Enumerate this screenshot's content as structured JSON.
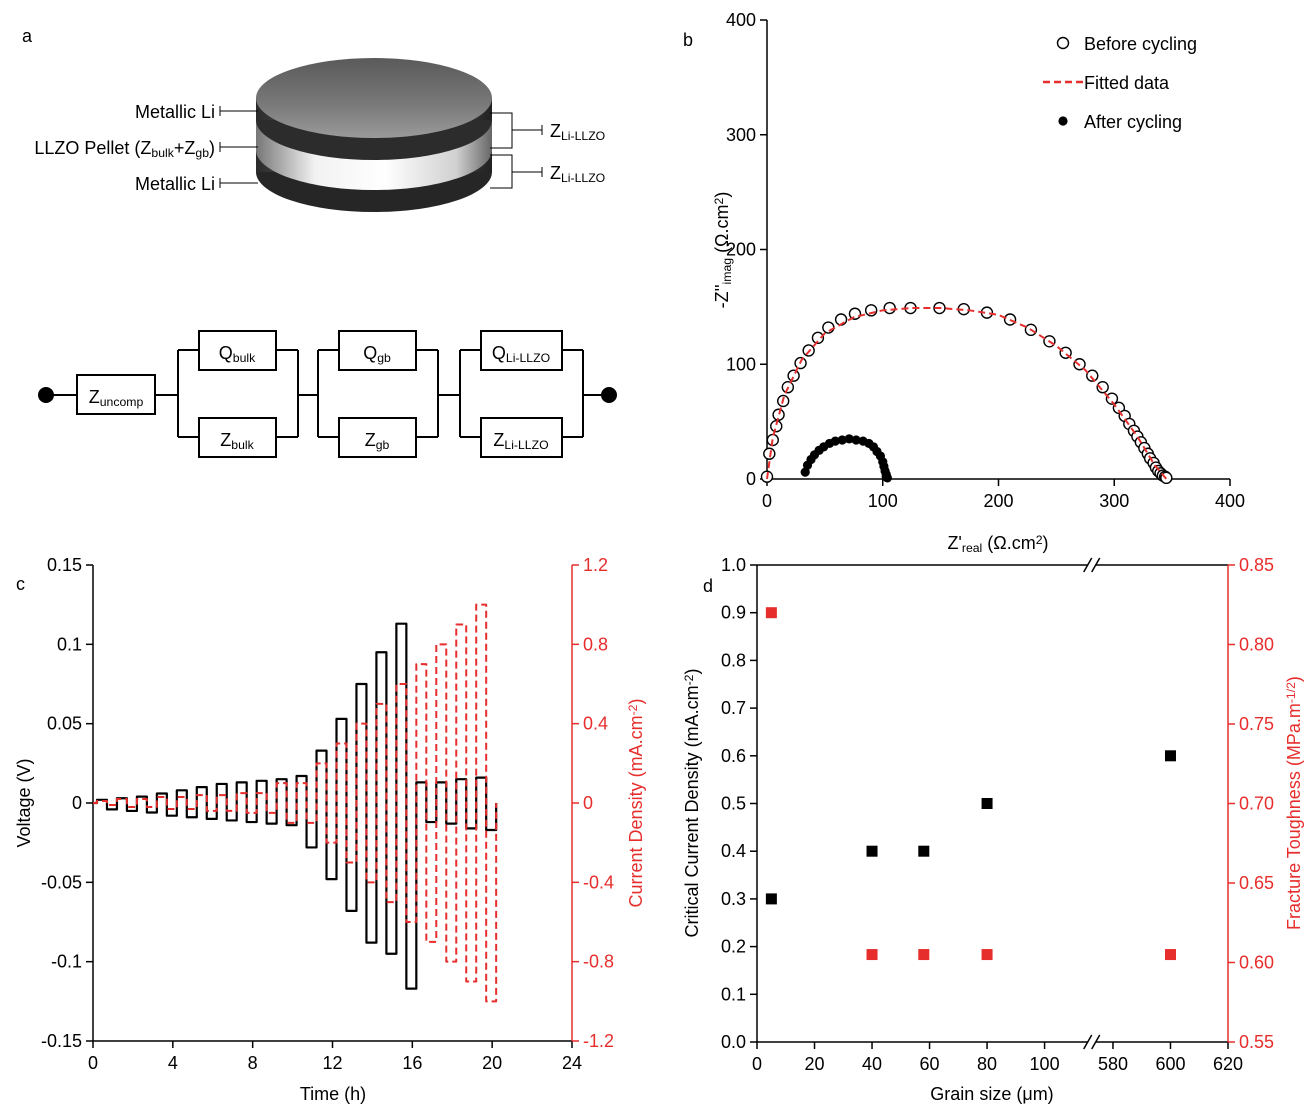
{
  "diagram": {
    "panel": "a",
    "cell_labels": [
      [
        "Metallic Li"
      ],
      [
        "LLZO Pellet (Z",
        {
          "sub": "bulk"
        },
        "+Z",
        {
          "sub": "gb"
        },
        ")"
      ],
      [
        "Metallic Li"
      ]
    ],
    "interface_labels": [
      [
        "Z",
        {
          "sub": "Li-LLZO"
        }
      ],
      [
        "Z",
        {
          "sub": "Li-LLZO"
        }
      ]
    ],
    "circuit": {
      "series_element": [
        "Z",
        {
          "sub": "uncomp"
        }
      ],
      "blocks": [
        {
          "q": [
            "Q",
            {
              "sub": "bulk"
            }
          ],
          "z": [
            "Z",
            {
              "sub": "bulk"
            }
          ]
        },
        {
          "q": [
            "Q",
            {
              "sub": "gb"
            }
          ],
          "z": [
            "Z",
            {
              "sub": "gb"
            }
          ]
        },
        {
          "q": [
            "Q",
            {
              "sub": "Li-LLZO"
            }
          ],
          "z": [
            "Z",
            {
              "sub": "Li-LLZO"
            }
          ]
        }
      ]
    }
  },
  "chart_data": [
    {
      "type": "scatter",
      "panel": "b",
      "xlabel": [
        "Z'",
        {
          "sub": "real"
        },
        " (Ω.cm",
        {
          "sup": "2"
        },
        ")"
      ],
      "ylabel": [
        "-Z''",
        {
          "sub": "imag"
        },
        " (Ω.cm",
        {
          "sup": "2"
        },
        ")"
      ],
      "xlim": [
        0,
        400
      ],
      "ylim": [
        0,
        400
      ],
      "xticks": [
        0,
        100,
        200,
        300,
        400
      ],
      "yticks": [
        0,
        100,
        200,
        300,
        400
      ],
      "legend": "upper right",
      "series": [
        {
          "name": "Before cycling",
          "color": "#000000",
          "marker": "open-circle",
          "x": [
            0,
            2,
            5,
            8,
            10,
            14,
            18,
            23,
            29,
            36,
            44,
            53,
            64,
            76,
            90,
            106,
            124,
            149,
            170,
            190,
            210,
            228,
            244,
            258,
            270,
            281,
            290,
            298,
            304,
            309,
            313,
            317,
            320,
            323,
            326,
            329,
            331,
            334,
            336,
            338,
            340,
            342,
            344,
            345
          ],
          "values": [
            2,
            22,
            34,
            46,
            56,
            68,
            80,
            90,
            101,
            112,
            123,
            132,
            139,
            144,
            147,
            149,
            149,
            149,
            148,
            145,
            139,
            130,
            120,
            110,
            100,
            90,
            80,
            70,
            62,
            55,
            48,
            42,
            37,
            32,
            27,
            22,
            18,
            14,
            10,
            7,
            5,
            3,
            2,
            1
          ]
        },
        {
          "name": "Fitted data",
          "color": "#e62e2d",
          "marker": "dashed-line",
          "x": [
            0,
            5,
            15,
            30,
            50,
            75,
            100,
            125,
            150,
            175,
            200,
            225,
            250,
            275,
            300,
            320,
            335,
            345
          ],
          "values": [
            0,
            36,
            73,
            104,
            127,
            141,
            147,
            149,
            149,
            147,
            143,
            132,
            116,
            95,
            65,
            37,
            12,
            0
          ]
        },
        {
          "name": "After cycling",
          "color": "#000000",
          "marker": "filled-circle",
          "x": [
            33,
            35,
            38,
            41,
            45,
            49,
            54,
            59,
            65,
            71,
            77,
            83,
            88,
            92,
            95,
            98,
            100,
            101,
            102,
            103,
            103,
            104
          ],
          "values": [
            6,
            12,
            17,
            21,
            25,
            28,
            31,
            33,
            34,
            35,
            34,
            33,
            31,
            28,
            24,
            20,
            15,
            11,
            7,
            4,
            2,
            1
          ]
        }
      ]
    },
    {
      "type": "line",
      "panel": "c",
      "xlabel": "Time (h)",
      "ylabel": "Voltage (V)",
      "y2label": [
        "Current Density (mA.cm",
        {
          "sup": "-2"
        },
        ")"
      ],
      "xlim": [
        0,
        24
      ],
      "xticks": [
        0,
        4,
        8,
        12,
        16,
        20,
        24
      ],
      "ylim": [
        -0.15,
        0.15
      ],
      "yticks": [
        0.15,
        0.1,
        0.05,
        0,
        -0.05,
        -0.1,
        -0.15
      ],
      "y2lim": [
        -1.2,
        1.2
      ],
      "y2ticks": [
        1.2,
        0.8,
        0.4,
        0,
        -0.4,
        -0.8,
        -1.2
      ],
      "x": [
        0,
        0.2,
        0.2,
        0.7,
        0.7,
        1.2,
        1.2,
        1.7,
        1.7,
        2.2,
        2.2,
        2.7,
        2.7,
        3.2,
        3.2,
        3.7,
        3.7,
        4.2,
        4.2,
        4.7,
        4.7,
        5.2,
        5.2,
        5.7,
        5.7,
        6.2,
        6.2,
        6.7,
        6.7,
        7.2,
        7.2,
        7.7,
        7.7,
        8.2,
        8.2,
        8.7,
        8.7,
        9.2,
        9.2,
        9.7,
        9.7,
        10.2,
        10.2,
        10.7,
        10.7,
        11.2,
        11.2,
        11.7,
        11.7,
        12.2,
        12.2,
        12.7,
        12.7,
        13.2,
        13.2,
        13.7,
        13.7,
        14.2,
        14.2,
        14.7,
        14.7,
        15.2,
        15.2,
        15.7,
        15.7,
        16.2,
        16.2,
        16.7,
        16.7,
        17.2,
        17.2,
        17.7,
        17.7,
        18.2,
        18.2,
        18.7,
        18.7,
        19.2,
        19.2,
        19.7,
        19.7,
        20.2,
        20.2
      ],
      "series": [
        {
          "color": "#000000",
          "style": "solid",
          "values": [
            0,
            0,
            0.002,
            0.002,
            -0.004,
            -0.004,
            0.003,
            0.003,
            -0.005,
            -0.005,
            0.004,
            0.004,
            -0.006,
            -0.006,
            0.006,
            0.006,
            -0.008,
            -0.008,
            0.008,
            0.008,
            -0.009,
            -0.009,
            0.01,
            0.01,
            -0.01,
            -0.01,
            0.012,
            0.012,
            -0.011,
            -0.011,
            0.013,
            0.013,
            -0.012,
            -0.012,
            0.014,
            0.014,
            -0.013,
            -0.013,
            0.015,
            0.015,
            -0.014,
            -0.014,
            0.017,
            0.017,
            -0.028,
            -0.028,
            0.033,
            0.033,
            -0.048,
            -0.048,
            0.053,
            0.053,
            -0.068,
            -0.068,
            0.075,
            0.075,
            -0.088,
            -0.088,
            0.095,
            0.095,
            -0.095,
            -0.095,
            0.113,
            0.113,
            -0.117,
            -0.117,
            0.013,
            0.013,
            -0.012,
            -0.012,
            0.013,
            0.013,
            -0.013,
            -0.013,
            0.015,
            0.015,
            -0.016,
            -0.016,
            0.016,
            0.016,
            -0.017,
            -0.017,
            0
          ]
        },
        {
          "color": "#e62e2d",
          "style": "dashed",
          "axis": "y2",
          "values": [
            0,
            0,
            0.01,
            0.01,
            -0.01,
            -0.01,
            0.02,
            0.02,
            -0.02,
            -0.02,
            0.02,
            0.02,
            -0.02,
            -0.02,
            0.03,
            0.03,
            -0.03,
            -0.03,
            0.03,
            0.03,
            -0.03,
            -0.03,
            0.04,
            0.04,
            -0.04,
            -0.04,
            0.04,
            0.04,
            -0.04,
            -0.04,
            0.05,
            0.05,
            -0.05,
            -0.05,
            0.05,
            0.05,
            -0.05,
            -0.05,
            0.1,
            0.1,
            -0.1,
            -0.1,
            0.1,
            0.1,
            -0.1,
            -0.1,
            0.2,
            0.2,
            -0.2,
            -0.2,
            0.3,
            0.3,
            -0.3,
            -0.3,
            0.4,
            0.4,
            -0.4,
            -0.4,
            0.5,
            0.5,
            -0.5,
            -0.5,
            0.6,
            0.6,
            -0.6,
            -0.6,
            0.7,
            0.7,
            -0.7,
            -0.7,
            0.8,
            0.8,
            -0.8,
            -0.8,
            0.9,
            0.9,
            -0.9,
            -0.9,
            1,
            1,
            -1,
            -1,
            0
          ]
        }
      ]
    },
    {
      "type": "scatter",
      "panel": "d",
      "xlabel": "Grain size (μm)",
      "ylabel": [
        "Critical Current Density (mA.cm",
        {
          "sup": "-2"
        },
        ")"
      ],
      "y2label": [
        "Fracture Toughness (MPa.m",
        {
          "sup": "-1/2"
        },
        ")"
      ],
      "xlim": [
        0,
        620
      ],
      "xbreak": [
        115,
        574
      ],
      "xticks": [
        0,
        20,
        40,
        60,
        80,
        100,
        580,
        600,
        620
      ],
      "ylim": [
        0,
        1
      ],
      "yticks": [
        {
          "value": 0,
          "label": "0.0"
        },
        0.1,
        0.2,
        0.3,
        0.4,
        0.5,
        0.6,
        0.7,
        0.8,
        0.9,
        {
          "value": 1,
          "label": "1.0"
        }
      ],
      "y2lim": [
        0.55,
        0.85
      ],
      "y2ticks": [
        0.55,
        {
          "value": 0.6,
          "label": "0.60"
        },
        0.65,
        {
          "value": 0.7,
          "label": "0.70"
        },
        0.75,
        {
          "value": 0.8,
          "label": "0.80"
        },
        0.85
      ],
      "series": [
        {
          "color": "#000000",
          "marker": "filled-square",
          "x": [
            5,
            40,
            58,
            80,
            600
          ],
          "values": [
            0.3,
            0.4,
            0.4,
            0.5,
            0.6
          ]
        },
        {
          "color": "#e62e2d",
          "marker": "filled-square",
          "axis": "y2",
          "x": [
            5,
            40,
            58,
            80,
            600
          ],
          "values": [
            0.82,
            0.605,
            0.605,
            0.605,
            0.605
          ]
        }
      ]
    }
  ]
}
